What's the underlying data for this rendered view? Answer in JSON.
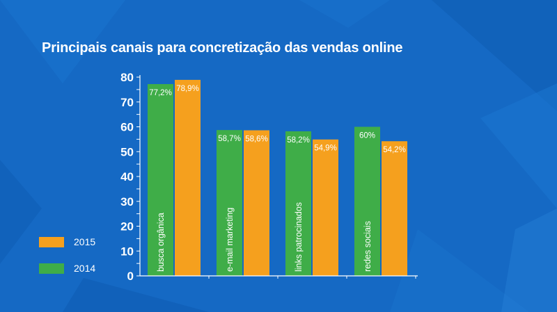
{
  "title": "Principais canais para concretização das vendas online",
  "colors": {
    "background": "#1569c4",
    "series_2014": "#3fad48",
    "series_2015": "#f5a01e",
    "axis": "#ffffff"
  },
  "legend": [
    {
      "name": "2015",
      "color": "#f5a01e"
    },
    {
      "name": "2014",
      "color": "#3fad48"
    }
  ],
  "chart_data": {
    "type": "bar",
    "title": "Principais canais para concretização das vendas online",
    "categories": [
      "busca orgânica",
      "e-mail marketing",
      "links patrocinados",
      "redes sociais"
    ],
    "series": [
      {
        "name": "2014",
        "values": [
          77.2,
          58.7,
          58.2,
          60
        ],
        "labels": [
          "77,2%",
          "58,7%",
          "58,2%",
          "60%"
        ]
      },
      {
        "name": "2015",
        "values": [
          78.9,
          58.6,
          54.9,
          54.2
        ],
        "labels": [
          "78,9%",
          "58,6%",
          "54,9%",
          "54,2%"
        ]
      }
    ],
    "yticks": [
      0,
      10,
      20,
      30,
      40,
      50,
      60,
      70,
      80
    ],
    "ylim": [
      0,
      80
    ],
    "xlabel": "",
    "ylabel": "",
    "grid": false,
    "legend_position": "bottom-left"
  }
}
